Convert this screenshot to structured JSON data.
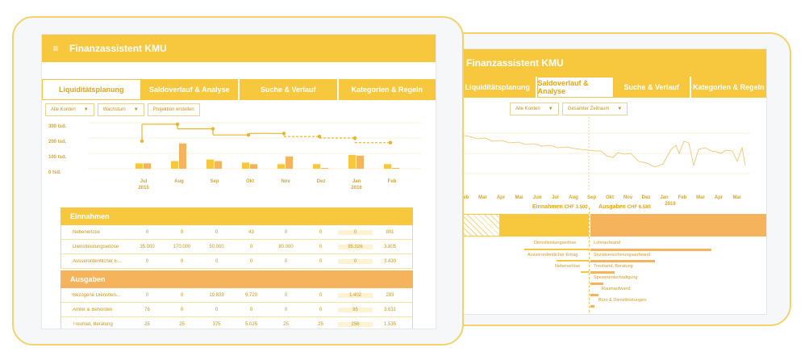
{
  "app": {
    "title": "Finanzassistent KMU"
  },
  "front": {
    "tabs": [
      "Liquiditätsplanung",
      "Saldoverlauf & Analyse",
      "Suche & Verlauf",
      "Kategorien & Regeln"
    ],
    "filters": {
      "account": "Alle Konten",
      "growth": "Wachstum",
      "projection": "Projektion erstellen"
    },
    "y_ticks": [
      "300 tsd.",
      "200 tsd.",
      "100 tsd.",
      "0 tsd."
    ],
    "months": [
      "Jul",
      "Aug",
      "Sep",
      "Okt",
      "Nov",
      "Dez",
      "Jan",
      "Feb"
    ],
    "years": [
      "2015",
      "",
      "",
      "",
      "",
      "",
      "2016",
      ""
    ],
    "income": {
      "title": "Einnahmen",
      "rows": [
        {
          "name": "Nebenerlöse",
          "cells": [
            "0",
            "0",
            "0",
            "43",
            "0",
            "0",
            "0",
            "801"
          ]
        },
        {
          "name": "Dienstleistungserlöse",
          "cells": [
            "35.000",
            "170.000",
            "50.000",
            "0",
            "80.000",
            "0",
            "85.026",
            "3.805"
          ]
        },
        {
          "name": "Ausserordentlicher E...",
          "cells": [
            "0",
            "0",
            "0",
            "0",
            "0",
            "0",
            "0",
            "3.430"
          ]
        }
      ]
    },
    "expenses": {
      "title": "Ausgaben",
      "rows": [
        {
          "name": "Bezogene Dienstleis...",
          "cells": [
            "0",
            "0",
            "19.839",
            "9.720",
            "0",
            "0",
            "1.402",
            "283"
          ]
        },
        {
          "name": "Ämter & Behörden",
          "cells": [
            "76",
            "0",
            "0",
            "0",
            "0",
            "0",
            "95",
            "3.631"
          ]
        },
        {
          "name": "Treuhad, Beratung",
          "cells": [
            "25",
            "25",
            "375",
            "5.025",
            "25",
            "25",
            "256",
            "1.535"
          ]
        }
      ]
    }
  },
  "back": {
    "tabs": [
      "Liquiditätsplanung",
      "Saldoverlauf & Analyse",
      "Suche & Verlauf",
      "Kategorien & Regeln"
    ],
    "filters": {
      "account": "Alle Konten",
      "period": "Gesamter Zeitraum"
    },
    "months": [
      "Feb",
      "Mar",
      "Apr",
      "Mai",
      "Jun",
      "Jul",
      "Aug",
      "Sep",
      "Okt",
      "Nov",
      "Dez",
      "Jan",
      "Feb",
      "Mar",
      "Apr",
      "Mai"
    ],
    "year_label": "2016",
    "income_label": "Einnahmen",
    "income_amount": "CHF 3.500",
    "expense_label": "Ausgaben",
    "expense_amount": "CHF 6.580",
    "income_categories": [
      "Dienstleistungserlöse",
      "Ausserordentlicher Ertrag",
      "Nebenerlöse"
    ],
    "expense_categories": [
      "Lohnaufwand",
      "Sozialversicherungsaufwand",
      "Treuhand, Beratung",
      "Spesenentschädigung",
      "Raumaufwand",
      "Büro & Dienstleistungen"
    ]
  },
  "chart_data": {
    "type": "bar",
    "categories": [
      "Jul 2015",
      "Aug",
      "Sep",
      "Okt",
      "Nov",
      "Dez",
      "Jan 2016",
      "Feb"
    ],
    "yticks": [
      "300 tsd.",
      "200 tsd.",
      "100 tsd.",
      "0 tsd."
    ],
    "ylim": [
      0,
      300000
    ],
    "series": [
      {
        "values": [
          35000,
          50000,
          60000,
          40000,
          30000,
          30000,
          90000,
          30000
        ]
      },
      {
        "values": [
          35000,
          165000,
          50000,
          30000,
          80000,
          5000,
          85000,
          5000
        ]
      }
    ],
    "balance_line": [
      180000,
      290000,
      260000,
      220000,
      230000,
      210000,
      200000,
      170000
    ],
    "colors": {
      "series_a": "#f7c83d",
      "series_b": "#f5b35b"
    }
  }
}
